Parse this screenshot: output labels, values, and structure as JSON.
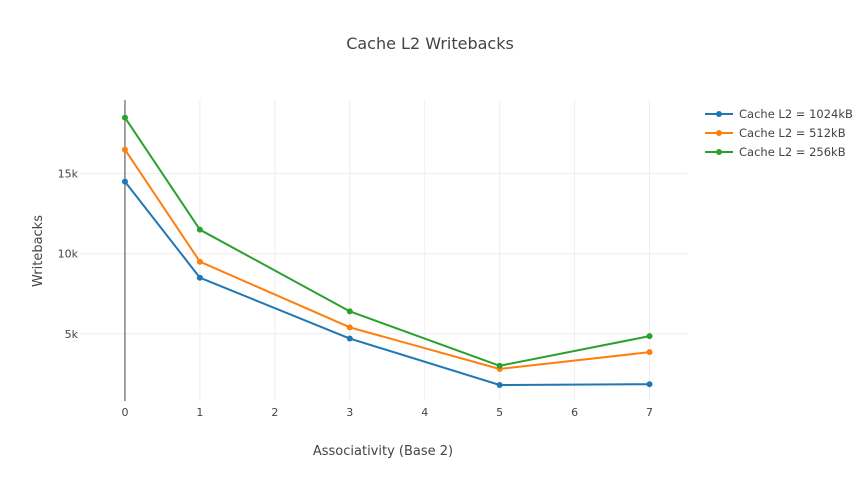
{
  "chart_data": {
    "type": "line",
    "title": "Cache L2 Writebacks",
    "xlabel": "Associativity (Base 2)",
    "ylabel": "Writebacks",
    "xlim": [
      -0.6,
      7.5
    ],
    "ylim": [
      800,
      19600
    ],
    "x_ticks": [
      0,
      1,
      2,
      3,
      4,
      5,
      6,
      7
    ],
    "y_ticks": [
      5000,
      10000,
      15000
    ],
    "y_tick_labels": [
      "5k",
      "10k",
      "15k"
    ],
    "grid": true,
    "legend": "top-right",
    "series": [
      {
        "name": "Cache L2 = 1024kB",
        "color": "#1f77b4",
        "x": [
          0,
          1,
          3,
          5,
          7
        ],
        "y": [
          14500,
          8500,
          4700,
          1800,
          1850
        ]
      },
      {
        "name": "Cache L2 = 512kB",
        "color": "#ff7f0e",
        "x": [
          0,
          1,
          3,
          5,
          7
        ],
        "y": [
          16500,
          9500,
          5400,
          2800,
          3850
        ]
      },
      {
        "name": "Cache L2 = 256kB",
        "color": "#2ca02c",
        "x": [
          0,
          1,
          3,
          5,
          7
        ],
        "y": [
          18500,
          11500,
          6400,
          3000,
          4850
        ]
      }
    ]
  }
}
